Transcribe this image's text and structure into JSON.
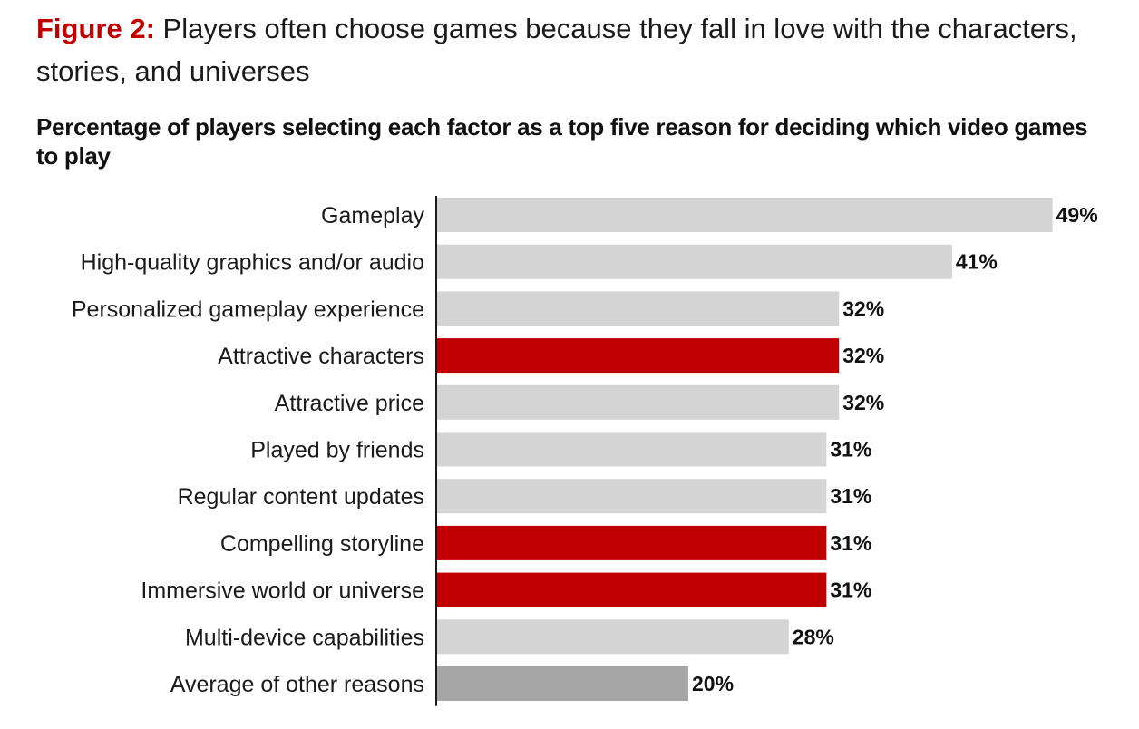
{
  "figure": {
    "label": "Figure 2:",
    "title": "Players often choose games because they fall in love with the characters, stories, and universes"
  },
  "chart_data": {
    "type": "bar",
    "orientation": "horizontal",
    "title": "Percentage of players selecting each factor as a top five reason for deciding which video games to play",
    "categories": [
      "Gameplay",
      "High-quality graphics and/or audio",
      "Personalized gameplay experience",
      "Attractive characters",
      "Attractive price",
      "Played by friends",
      "Regular content updates",
      "Compelling storyline",
      "Immersive world or universe",
      "Multi-device capabilities",
      "Average of other reasons"
    ],
    "values": [
      49,
      41,
      32,
      32,
      32,
      31,
      31,
      31,
      31,
      28,
      20
    ],
    "value_labels": [
      "49%",
      "41%",
      "32%",
      "32%",
      "32%",
      "31%",
      "31%",
      "31%",
      "31%",
      "28%",
      "20%"
    ],
    "bar_colors": [
      "#d4d4d4",
      "#d4d4d4",
      "#d4d4d4",
      "#c00000",
      "#d4d4d4",
      "#d4d4d4",
      "#d4d4d4",
      "#c00000",
      "#c00000",
      "#d4d4d4",
      "#a6a6a6"
    ],
    "xlim": [
      0,
      50
    ],
    "grid": false,
    "axis_color": "#1a1a1a"
  }
}
